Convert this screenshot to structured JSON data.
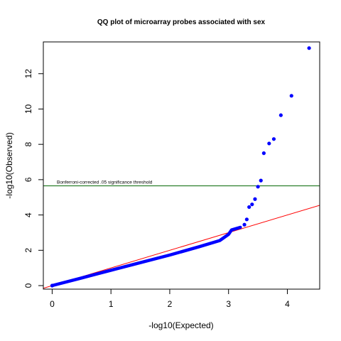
{
  "chart_data": {
    "type": "scatter",
    "title": "QQ plot of microarray probes associated with sex",
    "xlabel": "-log10(Expected)",
    "ylabel": "-log10(Observed)",
    "xlim": [
      -0.15,
      4.55
    ],
    "ylim": [
      -0.2,
      13.8
    ],
    "x_ticks": [
      0,
      1,
      2,
      3,
      4
    ],
    "y_ticks": [
      0,
      2,
      4,
      6,
      8,
      10,
      12
    ],
    "grid": false,
    "legend": "none",
    "point_color": "#0000ff",
    "reference_line": {
      "intercept": 0,
      "slope": 1,
      "color": "#ff0000"
    },
    "threshold": {
      "y": 5.65,
      "label": "Bonferroni-corrected .05 significance threshold",
      "color": "#006400"
    },
    "bulk_curve": [
      [
        0.0,
        0.0
      ],
      [
        0.5,
        0.43
      ],
      [
        1.0,
        0.87
      ],
      [
        1.5,
        1.3
      ],
      [
        2.0,
        1.73
      ],
      [
        2.5,
        2.2
      ],
      [
        2.85,
        2.55
      ],
      [
        3.0,
        2.9
      ],
      [
        3.05,
        3.15
      ],
      [
        3.2,
        3.3
      ]
    ],
    "points": [
      [
        0.0,
        0.0
      ],
      [
        3.27,
        3.45
      ],
      [
        3.31,
        3.75
      ],
      [
        3.35,
        4.45
      ],
      [
        3.4,
        4.6
      ],
      [
        3.45,
        4.9
      ],
      [
        3.5,
        5.6
      ],
      [
        3.55,
        5.95
      ],
      [
        3.6,
        7.5
      ],
      [
        3.69,
        8.05
      ],
      [
        3.77,
        8.3
      ],
      [
        3.89,
        9.65
      ],
      [
        4.07,
        10.75
      ],
      [
        4.37,
        13.45
      ]
    ]
  }
}
